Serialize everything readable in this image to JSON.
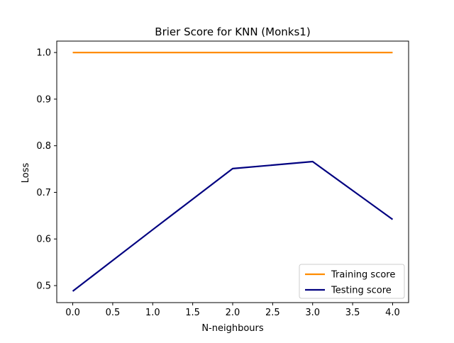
{
  "chart_data": {
    "type": "line",
    "title": "Brier Score for KNN (Monks1)",
    "xlabel": "N-neighbours",
    "ylabel": "Loss",
    "xlim": [
      -0.2,
      4.2
    ],
    "ylim": [
      0.4635,
      1.0245
    ],
    "xticks": [
      0.0,
      0.5,
      1.0,
      1.5,
      2.0,
      2.5,
      3.0,
      3.5,
      4.0
    ],
    "xtick_labels": [
      "0.0",
      "0.5",
      "1.0",
      "1.5",
      "2.0",
      "2.5",
      "3.0",
      "3.5",
      "4.0"
    ],
    "yticks": [
      0.5,
      0.6,
      0.7,
      0.8,
      0.9,
      1.0
    ],
    "ytick_labels": [
      "0.5",
      "0.6",
      "0.7",
      "0.8",
      "0.9",
      "1.0"
    ],
    "grid": false,
    "legend_position": "lower-right",
    "series": [
      {
        "name": "Training score",
        "color": "#ff8c00",
        "x": [
          0,
          1,
          2,
          3,
          4
        ],
        "values": [
          1.0,
          1.0,
          1.0,
          1.0,
          1.0
        ]
      },
      {
        "name": "Testing score",
        "color": "#000080",
        "x": [
          0,
          1,
          2,
          3,
          4
        ],
        "values": [
          0.488,
          0.62,
          0.751,
          0.766,
          0.642
        ]
      }
    ]
  }
}
